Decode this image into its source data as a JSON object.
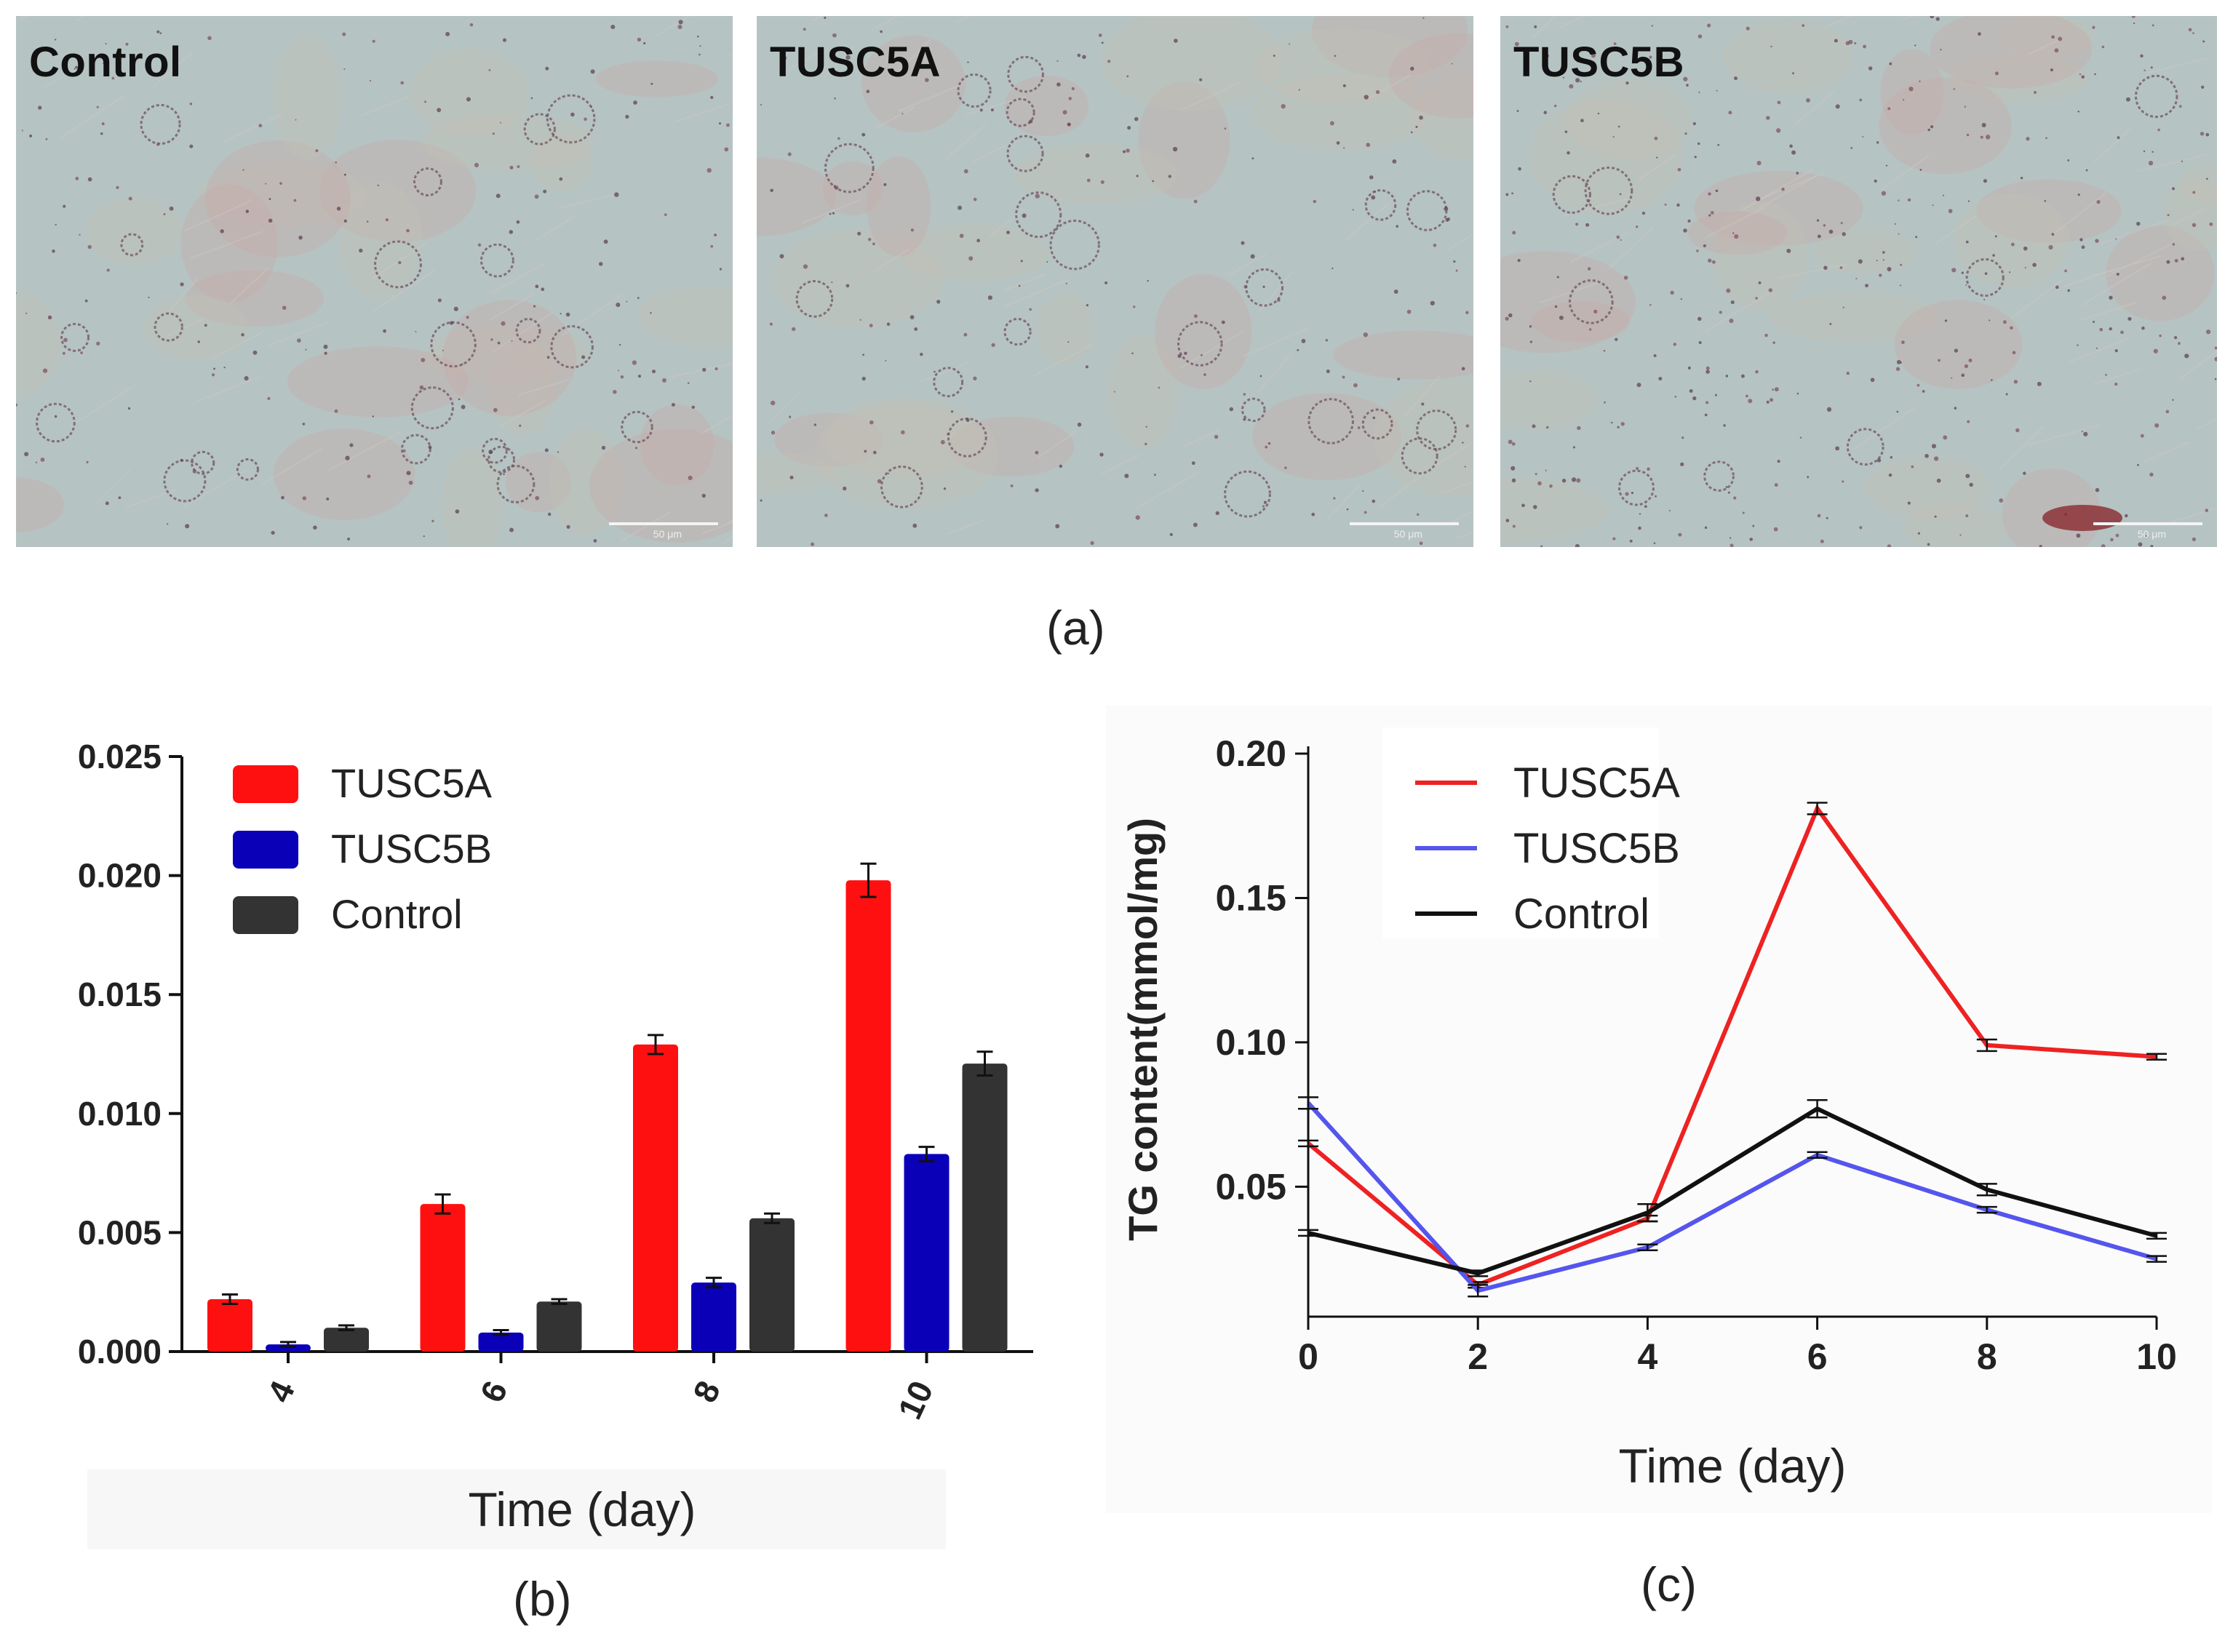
{
  "panels": {
    "micrographs": [
      {
        "label": "Control",
        "scale_label": "50 μm"
      },
      {
        "label": "TUSC5A",
        "scale_label": "50 μm"
      },
      {
        "label": "TUSC5B",
        "scale_label": "50 μm"
      }
    ],
    "captions": {
      "a": "(a)",
      "b": "(b)",
      "c": "(c)"
    }
  },
  "colors": {
    "TUSC5A_bar": "#ff1010",
    "TUSC5B_bar": "#0a00b8",
    "Control_bar": "#333333",
    "TUSC5A_line": "#ee2222",
    "TUSC5B_line": "#5555ee",
    "Control_line": "#111111",
    "micro_bg": "#b6c3c3"
  },
  "chart_data": [
    {
      "type": "bar",
      "title": "",
      "xlabel": "Time (day)",
      "ylabel": "",
      "categories": [
        "4",
        "6",
        "8",
        "10"
      ],
      "ylim": [
        0,
        0.025
      ],
      "yticks": [
        "0.000",
        "0.005",
        "0.010",
        "0.015",
        "0.020",
        "0.025"
      ],
      "legend": "top-left",
      "series": [
        {
          "name": "TUSC5A",
          "values": [
            0.0022,
            0.0062,
            0.0129,
            0.0198
          ],
          "errors": [
            0.0002,
            0.0004,
            0.0004,
            0.0007
          ]
        },
        {
          "name": "TUSC5B",
          "values": [
            0.0003,
            0.0008,
            0.0029,
            0.0083
          ],
          "errors": [
            0.0001,
            0.0001,
            0.0002,
            0.0003
          ]
        },
        {
          "name": "Control",
          "values": [
            0.001,
            0.0021,
            0.0056,
            0.0121
          ],
          "errors": [
            0.0001,
            0.0001,
            0.0002,
            0.0005
          ]
        }
      ]
    },
    {
      "type": "line",
      "title": "",
      "xlabel": "Time (day)",
      "ylabel": "TG content(mmol/mg)",
      "x": [
        0,
        2,
        4,
        6,
        8,
        10
      ],
      "xlim": [
        0,
        10
      ],
      "ylim": [
        0.005,
        0.2
      ],
      "xticks": [
        "0",
        "2",
        "4",
        "6",
        "8",
        "10"
      ],
      "yticks": [
        "0.05",
        "0.10",
        "0.15",
        "0.20"
      ],
      "legend": "top-left",
      "series": [
        {
          "name": "TUSC5A",
          "values": [
            0.065,
            0.016,
            0.039,
            0.181,
            0.099,
            0.095
          ],
          "errors": [
            0.001,
            0.001,
            0.001,
            0.002,
            0.002,
            0.001
          ]
        },
        {
          "name": "TUSC5B",
          "values": [
            0.079,
            0.014,
            0.029,
            0.061,
            0.042,
            0.025
          ],
          "errors": [
            0.002,
            0.002,
            0.001,
            0.001,
            0.001,
            0.001
          ]
        },
        {
          "name": "Control",
          "values": [
            0.034,
            0.02,
            0.041,
            0.077,
            0.049,
            0.033
          ],
          "errors": [
            0.001,
            0.001,
            0.003,
            0.003,
            0.002,
            0.001
          ]
        }
      ]
    }
  ]
}
